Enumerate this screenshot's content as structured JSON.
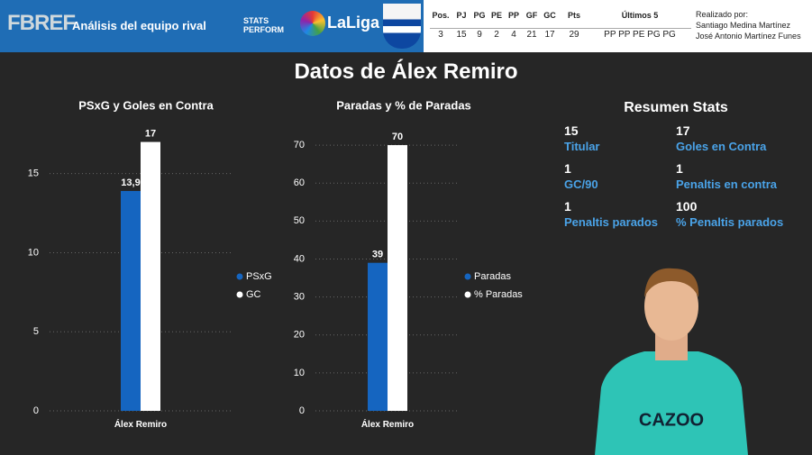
{
  "header": {
    "logo_fbref": "FBREF",
    "title": "Análisis del equipo rival",
    "logo_stats": "STATS PERFORM",
    "logo_laliga": "LaLiga",
    "table": {
      "columns": [
        "Pos.",
        "PJ",
        "PG",
        "PE",
        "PP",
        "GF",
        "GC",
        "Pts",
        "Últimos 5"
      ],
      "row": [
        3,
        15,
        9,
        2,
        4,
        21,
        17,
        29,
        "PP PP PE PG PG"
      ]
    },
    "credits": [
      "Realizado por:",
      "Santiago Medina Martínez",
      "José Antonio Martínez Funes"
    ]
  },
  "page_title": "Datos de Álex Remiro",
  "chart_data": [
    {
      "type": "bar",
      "title": "PSxG y Goles en Contra",
      "categories": [
        "Álex Remiro"
      ],
      "series": [
        {
          "name": "PSxG",
          "color": "#1565c0",
          "values": [
            13.9
          ],
          "value_labels": [
            "13,9"
          ]
        },
        {
          "name": "GC",
          "color": "#ffffff",
          "values": [
            17
          ]
        }
      ],
      "ylim": [
        0,
        18
      ],
      "yticks": [
        0,
        5,
        10,
        15
      ],
      "grid": true,
      "legend": "right"
    },
    {
      "type": "bar",
      "title": "Paradas y % de Paradas",
      "categories": [
        "Álex Remiro"
      ],
      "series": [
        {
          "name": "Paradas",
          "color": "#1565c0",
          "values": [
            39
          ]
        },
        {
          "name": "% Paradas",
          "color": "#ffffff",
          "values": [
            70
          ]
        }
      ],
      "ylim": [
        0,
        75
      ],
      "yticks": [
        0,
        10,
        20,
        30,
        40,
        50,
        60,
        70
      ],
      "grid": true,
      "legend": "right"
    }
  ],
  "summary": {
    "title": "Resumen Stats",
    "items": [
      {
        "value": 15,
        "label": "Titular"
      },
      {
        "value": 17,
        "label": "Goles en Contra"
      },
      {
        "value": 1,
        "label": "GC/90"
      },
      {
        "value": 1,
        "label": "Penaltis en contra"
      },
      {
        "value": 1,
        "label": "Penaltis parados"
      },
      {
        "value": 100,
        "label": "% Penaltis parados"
      }
    ]
  }
}
